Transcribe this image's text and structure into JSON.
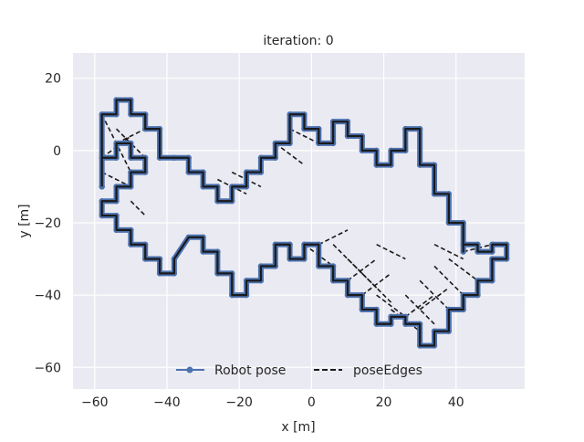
{
  "chart_data": {
    "type": "line",
    "title": "iteration: 0",
    "xlabel": "x [m]",
    "ylabel": "y [m]",
    "xlim": [
      -66,
      59
    ],
    "ylim": [
      -66,
      27
    ],
    "xticks": [
      -60,
      -40,
      -20,
      0,
      20,
      40
    ],
    "yticks": [
      20,
      0,
      -20,
      -40,
      -60
    ],
    "xtick_labels": [
      "−60",
      "−40",
      "−20",
      "0",
      "20",
      "40"
    ],
    "ytick_labels": [
      "20",
      "0",
      "−20",
      "−40",
      "−60"
    ],
    "grid": true,
    "legend": {
      "placement": "lower-center",
      "entries": [
        "Robot pose",
        "poseEdges"
      ]
    },
    "colors": {
      "background": "#eaeaf2",
      "grid": "#ffffff",
      "pose": "#4c72b0",
      "edges": "#1a1a1a"
    },
    "series": [
      {
        "name": "Robot pose",
        "style": "solid line with circle markers",
        "x": [
          -58,
          -58,
          -54,
          -54,
          -50,
          -50,
          -46,
          -46,
          -42,
          -42,
          -38,
          -34,
          -34,
          -30,
          -30,
          -26,
          -26,
          -22,
          -22,
          -18,
          -18,
          -14,
          -14,
          -10,
          -10,
          -6,
          -6,
          -2,
          -2,
          2,
          2,
          6,
          6,
          10,
          10,
          14,
          14,
          18,
          18,
          22,
          22,
          26,
          26,
          30,
          30,
          34,
          34,
          38,
          38,
          42,
          42,
          42,
          46,
          46,
          50,
          50,
          54,
          54,
          50,
          50,
          46,
          46,
          42,
          42,
          38,
          38,
          34,
          34,
          30,
          30,
          26,
          26,
          22,
          22,
          18,
          18,
          14,
          14,
          10,
          10,
          6,
          6,
          2,
          2,
          -2,
          -2,
          -6,
          -6,
          -10,
          -10,
          -14,
          -14,
          -18,
          -18,
          -22,
          -22,
          -26,
          -26,
          -30,
          -30,
          -34,
          -38,
          -38,
          -42,
          -42,
          -46,
          -46,
          -50,
          -50,
          -54,
          -54,
          -58,
          -58,
          -54,
          -54,
          -50,
          -50,
          -46,
          -46,
          -50,
          -50,
          -54,
          -54,
          -58,
          -58
        ],
        "y": [
          -10,
          10,
          10,
          14,
          14,
          10,
          10,
          6,
          6,
          -2,
          -2,
          -2,
          -6,
          -6,
          -10,
          -10,
          -14,
          -14,
          -10,
          -10,
          -6,
          -6,
          -2,
          -2,
          2,
          2,
          10,
          10,
          6,
          6,
          2,
          2,
          8,
          8,
          4,
          4,
          0,
          0,
          -4,
          -4,
          0,
          0,
          6,
          6,
          -4,
          -4,
          -12,
          -12,
          -20,
          -20,
          -28,
          -26,
          -26,
          -28,
          -28,
          -26,
          -26,
          -30,
          -30,
          -36,
          -36,
          -40,
          -40,
          -44,
          -44,
          -50,
          -50,
          -54,
          -54,
          -48,
          -48,
          -46,
          -46,
          -48,
          -48,
          -44,
          -44,
          -40,
          -40,
          -36,
          -36,
          -32,
          -32,
          -26,
          -26,
          -30,
          -30,
          -26,
          -26,
          -32,
          -32,
          -36,
          -36,
          -40,
          -40,
          -34,
          -34,
          -28,
          -28,
          -24,
          -24,
          -30,
          -34,
          -34,
          -30,
          -30,
          -26,
          -26,
          -22,
          -22,
          -18,
          -18,
          -14,
          -14,
          -10,
          -10,
          -6,
          -6,
          -2,
          -2,
          2,
          2,
          -2,
          -2,
          -10
        ]
      },
      {
        "name": "poseEdges",
        "style": "dashed",
        "segments": [
          [
            [
              -58,
              10
            ],
            [
              -50,
              -6
            ]
          ],
          [
            [
              -58,
              -2
            ],
            [
              -50,
              4
            ]
          ],
          [
            [
              -54,
              6
            ],
            [
              -46,
              -2
            ]
          ],
          [
            [
              -58,
              -6
            ],
            [
              -50,
              -10
            ]
          ],
          [
            [
              -54,
              2
            ],
            [
              -46,
              6
            ]
          ],
          [
            [
              -50,
              -14
            ],
            [
              -46,
              -18
            ]
          ],
          [
            [
              -26,
              -8
            ],
            [
              -18,
              -12
            ]
          ],
          [
            [
              -22,
              -6
            ],
            [
              -14,
              -10
            ]
          ],
          [
            [
              -10,
              2
            ],
            [
              -2,
              -4
            ]
          ],
          [
            [
              -6,
              6
            ],
            [
              2,
              2
            ]
          ],
          [
            [
              -2,
              -26
            ],
            [
              6,
              -32
            ]
          ],
          [
            [
              6,
              -26
            ],
            [
              14,
              -34
            ]
          ],
          [
            [
              10,
              -30
            ],
            [
              18,
              -38
            ]
          ],
          [
            [
              14,
              -34
            ],
            [
              22,
              -42
            ]
          ],
          [
            [
              18,
              -40
            ],
            [
              26,
              -46
            ]
          ],
          [
            [
              22,
              -44
            ],
            [
              30,
              -50
            ]
          ],
          [
            [
              26,
              -40
            ],
            [
              34,
              -48
            ]
          ],
          [
            [
              30,
              -36
            ],
            [
              38,
              -44
            ]
          ],
          [
            [
              34,
              -32
            ],
            [
              42,
              -40
            ]
          ],
          [
            [
              38,
              -30
            ],
            [
              46,
              -36
            ]
          ],
          [
            [
              42,
              -28
            ],
            [
              50,
              -26
            ]
          ],
          [
            [
              10,
              -36
            ],
            [
              18,
              -30
            ]
          ],
          [
            [
              14,
              -40
            ],
            [
              22,
              -34
            ]
          ],
          [
            [
              26,
              -46
            ],
            [
              34,
              -40
            ]
          ],
          [
            [
              30,
              -44
            ],
            [
              38,
              -38
            ]
          ],
          [
            [
              2,
              -26
            ],
            [
              10,
              -22
            ]
          ],
          [
            [
              18,
              -26
            ],
            [
              26,
              -30
            ]
          ],
          [
            [
              34,
              -26
            ],
            [
              42,
              -30
            ]
          ]
        ]
      }
    ]
  }
}
